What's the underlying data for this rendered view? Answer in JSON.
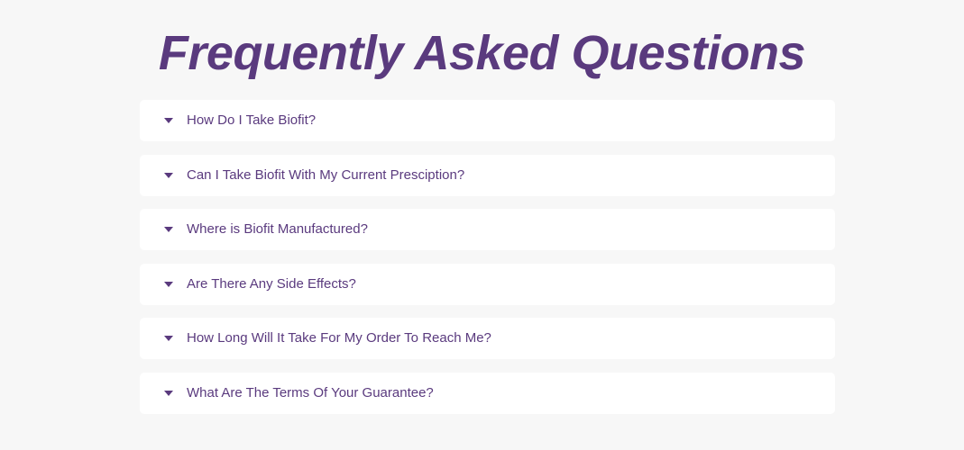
{
  "faq": {
    "title": "Frequently Asked Questions",
    "items": [
      {
        "question": "How Do I Take Biofit?"
      },
      {
        "question": "Can I Take Biofit With My Current Presciption?"
      },
      {
        "question": "Where is Biofit Manufactured?"
      },
      {
        "question": "Are There Any Side Effects?"
      },
      {
        "question": "How Long Will It Take For My Order To Reach Me?"
      },
      {
        "question": "What Are The Terms Of Your Guarantee?"
      }
    ],
    "icon": "caret-down-icon"
  },
  "colors": {
    "background": "#f7f7f7",
    "card": "#ffffff",
    "accent": "#5a3a7e"
  }
}
